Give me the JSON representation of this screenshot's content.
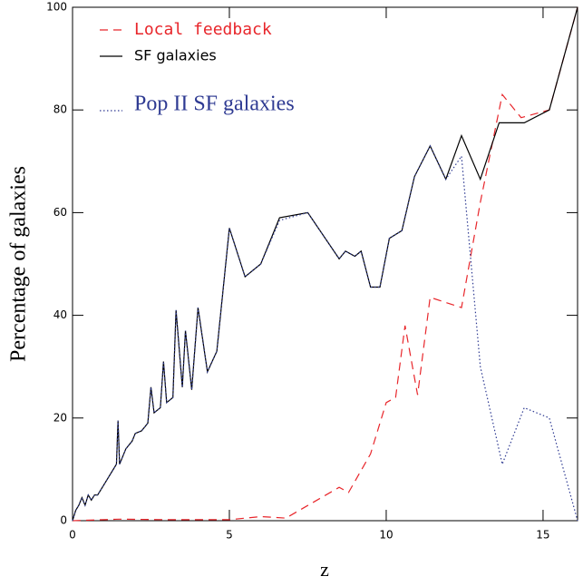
{
  "chart_data": {
    "type": "line",
    "xlabel": "z",
    "ylabel": "Percentage of galaxies",
    "xlim": [
      0,
      16.1
    ],
    "ylim": [
      0,
      100
    ],
    "xticks": [
      0,
      5,
      10,
      15
    ],
    "yticks": [
      0,
      20,
      40,
      60,
      80,
      100
    ],
    "series": [
      {
        "name": "Local feedback",
        "color": "#e8262b",
        "style": "dashed",
        "x": [
          0,
          1.5,
          3,
          5.0,
          6.0,
          6.8,
          8.5,
          8.8,
          9.5,
          10.0,
          10.3,
          10.6,
          11.0,
          11.4,
          11.9,
          12.4,
          13.0,
          13.7,
          14.3,
          15.2,
          16.1
        ],
        "values": [
          0,
          0.3,
          0.2,
          0.2,
          0.8,
          0.5,
          6.5,
          5.5,
          13,
          23,
          24,
          38,
          24.5,
          43.5,
          42.5,
          41.5,
          62,
          83,
          78.5,
          80,
          100
        ]
      },
      {
        "name": "SF galaxies",
        "color": "#000000",
        "style": "solid",
        "x": [
          0,
          0.1,
          0.2,
          0.3,
          0.4,
          0.5,
          0.6,
          0.7,
          0.8,
          1.0,
          1.2,
          1.4,
          1.45,
          1.5,
          1.7,
          1.9,
          2.0,
          2.2,
          2.4,
          2.5,
          2.6,
          2.8,
          2.9,
          3.0,
          3.2,
          3.3,
          3.5,
          3.6,
          3.8,
          4.0,
          4.3,
          4.6,
          5.0,
          5.5,
          6.0,
          6.6,
          7.5,
          8.5,
          8.7,
          9.0,
          9.2,
          9.5,
          9.8,
          10.1,
          10.5,
          10.9,
          11.4,
          11.9,
          12.4,
          13.0,
          13.6,
          14.4,
          15.2,
          16.1
        ],
        "values": [
          0,
          2,
          3,
          4.5,
          3,
          5,
          4,
          5,
          5,
          7,
          9,
          11,
          19.5,
          11,
          14,
          15.5,
          17,
          17.5,
          19,
          26,
          21,
          22,
          31,
          23,
          24,
          41,
          26,
          37,
          25.5,
          41.5,
          29,
          33,
          57,
          47.5,
          50,
          59,
          60,
          51,
          52.5,
          51.5,
          52.5,
          45.5,
          45.5,
          55,
          56.5,
          67,
          73,
          66.5,
          75,
          66.5,
          77.5,
          77.5,
          80,
          100
        ]
      },
      {
        "name": "Pop II SF galaxies",
        "color": "#2e3a92",
        "style": "dotted",
        "x": [
          0,
          0.1,
          0.2,
          0.3,
          0.4,
          0.5,
          0.6,
          0.7,
          0.8,
          1.0,
          1.2,
          1.4,
          1.45,
          1.5,
          1.7,
          1.9,
          2.0,
          2.2,
          2.4,
          2.5,
          2.6,
          2.8,
          2.9,
          3.0,
          3.2,
          3.3,
          3.5,
          3.6,
          3.8,
          4.0,
          4.3,
          4.6,
          5.0,
          5.5,
          6.0,
          6.6,
          7.5,
          8.5,
          8.7,
          9.0,
          9.2,
          9.5,
          9.8,
          10.1,
          10.5,
          10.9,
          11.4,
          11.9,
          12.4,
          13.0,
          13.7,
          14.4,
          15.2,
          16.1
        ],
        "values": [
          0,
          2,
          3,
          4.5,
          3,
          5,
          4,
          5,
          5,
          7,
          9,
          11,
          19.5,
          11,
          14,
          15.5,
          17,
          17.5,
          19,
          26,
          21,
          22,
          31,
          23,
          24,
          41,
          26,
          37,
          25.5,
          41.5,
          29,
          33,
          57,
          47.5,
          50,
          58.5,
          60,
          51,
          52.5,
          51.5,
          52.5,
          45.5,
          45.5,
          55,
          56.5,
          67,
          73,
          66.5,
          71,
          30,
          11,
          22,
          20,
          0
        ]
      }
    ]
  }
}
